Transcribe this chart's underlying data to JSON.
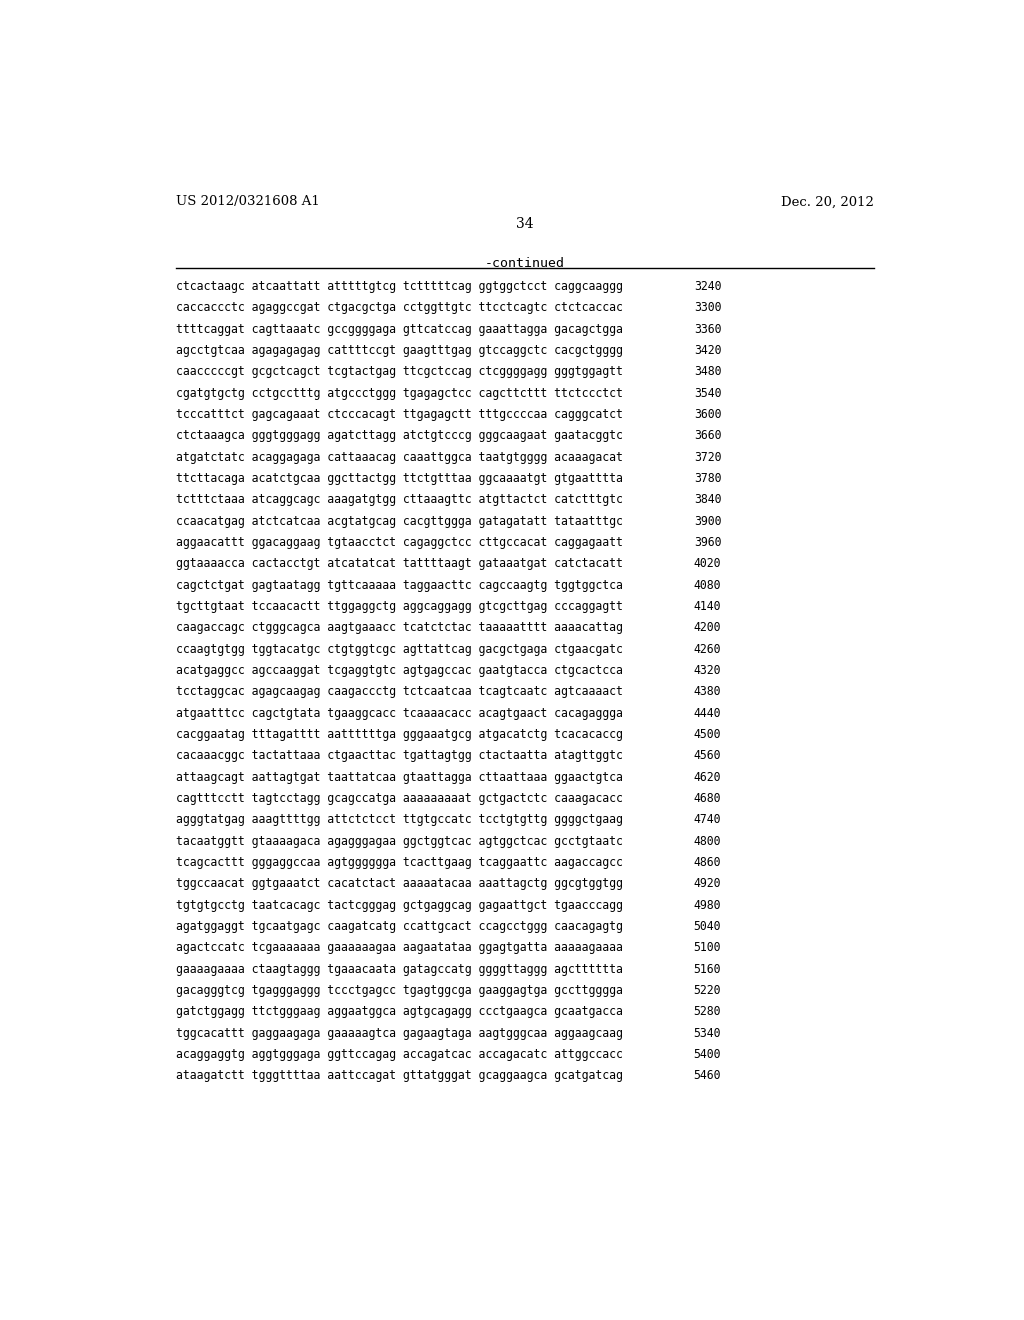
{
  "header_left": "US 2012/0321608 A1",
  "header_right": "Dec. 20, 2012",
  "page_number": "34",
  "continued_label": "-continued",
  "background_color": "#ffffff",
  "text_color": "#000000",
  "sequence_lines": [
    [
      "ctcactaagc atcaattatt atttttgtcg tctttttcag ggtggctcct caggcaaggg",
      "3240"
    ],
    [
      "caccaccctc agaggccgat ctgacgctga cctggttgtc ttcctcagtc ctctcaccac",
      "3300"
    ],
    [
      "ttttcaggat cagttaaatc gccggggaga gttcatccag gaaattagga gacagctgga",
      "3360"
    ],
    [
      "agcctgtcaa agagagagag cattttccgt gaagtttgag gtccaggctc cacgctgggg",
      "3420"
    ],
    [
      "caacccccgt gcgctcagct tcgtactgag ttcgctccag ctcggggagg gggtggagtt",
      "3480"
    ],
    [
      "cgatgtgctg cctgcctttg atgccctggg tgagagctcc cagcttcttt ttctccctct",
      "3540"
    ],
    [
      "tcccatttct gagcagaaat ctcccacagt ttgagagctt tttgccccaa cagggcatct",
      "3600"
    ],
    [
      "ctctaaagca gggtgggagg agatcttagg atctgtcccg gggcaagaat gaatacggtc",
      "3660"
    ],
    [
      "atgatctatc acaggagaga cattaaacag caaattggca taatgtgggg acaaagacat",
      "3720"
    ],
    [
      "ttcttacaga acatctgcaa ggcttactgg ttctgtttaa ggcaaaatgt gtgaatttta",
      "3780"
    ],
    [
      "tctttctaaa atcaggcagc aaagatgtgg cttaaagttc atgttactct catctttgtc",
      "3840"
    ],
    [
      "ccaacatgag atctcatcaa acgtatgcag cacgttggga gatagatatt tataatttgc",
      "3900"
    ],
    [
      "aggaacattt ggacaggaag tgtaacctct cagaggctcc cttgccacat caggagaatt",
      "3960"
    ],
    [
      "ggtaaaacca cactacctgt atcatatcat tattttaagt gataaatgat catctacatt",
      "4020"
    ],
    [
      "cagctctgat gagtaatagg tgttcaaaaa taggaacttc cagccaagtg tggtggctca",
      "4080"
    ],
    [
      "tgcttgtaat tccaacactt ttggaggctg aggcaggagg gtcgcttgag cccaggagtt",
      "4140"
    ],
    [
      "caagaccagc ctgggcagca aagtgaaacc tcatctctac taaaaatttt aaaacattag",
      "4200"
    ],
    [
      "ccaagtgtgg tggtacatgc ctgtggtcgc agttattcag gacgctgaga ctgaacgatc",
      "4260"
    ],
    [
      "acatgaggcc agccaaggat tcgaggtgtc agtgagccac gaatgtacca ctgcactcca",
      "4320"
    ],
    [
      "tcctaggcac agagcaagag caagaccctg tctcaatcaa tcagtcaatc agtcaaaact",
      "4380"
    ],
    [
      "atgaatttcc cagctgtata tgaaggcacc tcaaaacacc acagtgaact cacagaggga",
      "4440"
    ],
    [
      "cacggaatag tttagatttt aattttttga gggaaatgcg atgacatctg tcacacaccg",
      "4500"
    ],
    [
      "cacaaacggc tactattaaa ctgaacttac tgattagtgg ctactaatta atagttggtc",
      "4560"
    ],
    [
      "attaagcagt aattagtgat taattatcaa gtaattagga cttaattaaa ggaactgtca",
      "4620"
    ],
    [
      "cagtttcctt tagtcctagg gcagccatga aaaaaaaaat gctgactctc caaagacacc",
      "4680"
    ],
    [
      "agggtatgag aaagttttgg attctctcct ttgtgccatc tcctgtgttg ggggctgaag",
      "4740"
    ],
    [
      "tacaatggtt gtaaaagaca agagggagaa ggctggtcac agtggctcac gcctgtaatc",
      "4800"
    ],
    [
      "tcagcacttt gggaggccaa agtgggggga tcacttgaag tcaggaattc aagaccagcc",
      "4860"
    ],
    [
      "tggccaacat ggtgaaatct cacatctact aaaaatacaa aaattagctg ggcgtggtgg",
      "4920"
    ],
    [
      "tgtgtgcctg taatcacagc tactcgggag gctgaggcag gagaattgct tgaacccagg",
      "4980"
    ],
    [
      "agatggaggt tgcaatgagc caagatcatg ccattgcact ccagcctggg caacagagtg",
      "5040"
    ],
    [
      "agactccatc tcgaaaaaaa gaaaaaagaa aagaatataa ggagtgatta aaaaagaaaa",
      "5100"
    ],
    [
      "gaaaagaaaa ctaagtaggg tgaaacaata gatagccatg ggggttaggg agctttttta",
      "5160"
    ],
    [
      "gacagggtcg tgagggaggg tccctgagcc tgagtggcga gaaggagtga gccttgggga",
      "5220"
    ],
    [
      "gatctggagg ttctgggaag aggaatggca agtgcagagg ccctgaagca gcaatgacca",
      "5280"
    ],
    [
      "tggcacattt gaggaagaga gaaaaagtca gagaagtaga aagtgggcaa aggaagcaag",
      "5340"
    ],
    [
      "acaggaggtg aggtgggaga ggttccagag accagatcac accagacatc attggccacc",
      "5400"
    ],
    [
      "ataagatctt tgggttttaa aattccagat gttatgggat gcaggaagca gcatgatcag",
      "5460"
    ]
  ]
}
